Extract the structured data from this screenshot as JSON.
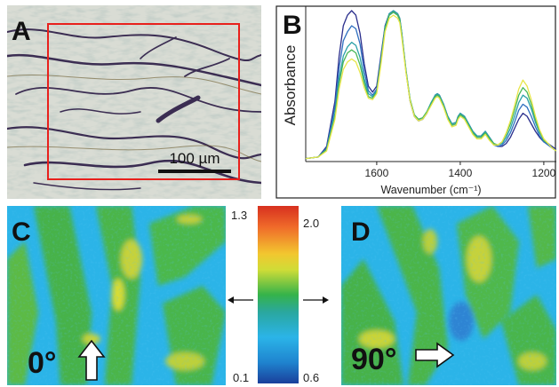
{
  "panels": {
    "a": {
      "label": "A",
      "scalebar": "100 µm"
    },
    "b": {
      "label": "B"
    },
    "c": {
      "label": "C",
      "angle": "0°"
    },
    "d": {
      "label": "D",
      "angle": "90°"
    }
  },
  "colorbar": {
    "left_max": "1.3",
    "left_min": "0.1",
    "right_max": "2.0",
    "right_min": "0.6"
  },
  "chart_data": {
    "type": "line",
    "xlabel": "Wavenumber (cm⁻¹)",
    "ylabel": "Absorbance",
    "xlim": [
      1770,
      1170
    ],
    "x_reversed": true,
    "ylim": [
      0,
      1
    ],
    "xticks": [
      1600,
      1400,
      1200
    ],
    "grid": false,
    "x": [
      1770,
      1740,
      1720,
      1700,
      1690,
      1680,
      1670,
      1660,
      1650,
      1640,
      1630,
      1620,
      1610,
      1600,
      1590,
      1580,
      1570,
      1560,
      1550,
      1545,
      1540,
      1530,
      1520,
      1510,
      1500,
      1490,
      1480,
      1470,
      1460,
      1455,
      1450,
      1440,
      1430,
      1420,
      1410,
      1405,
      1400,
      1390,
      1380,
      1370,
      1360,
      1350,
      1340,
      1330,
      1320,
      1310,
      1300,
      1290,
      1280,
      1270,
      1260,
      1250,
      1240,
      1230,
      1220,
      1210,
      1200,
      1190,
      1180,
      1170
    ],
    "series": [
      {
        "values": [
          0.02,
          0.03,
          0.1,
          0.4,
          0.7,
          0.9,
          0.97,
          1.0,
          0.97,
          0.85,
          0.65,
          0.5,
          0.46,
          0.5,
          0.7,
          0.9,
          0.98,
          1.0,
          0.98,
          0.95,
          0.85,
          0.6,
          0.4,
          0.3,
          0.27,
          0.28,
          0.32,
          0.38,
          0.44,
          0.45,
          0.44,
          0.38,
          0.3,
          0.25,
          0.26,
          0.3,
          0.32,
          0.3,
          0.25,
          0.2,
          0.17,
          0.17,
          0.2,
          0.16,
          0.12,
          0.1,
          0.1,
          0.12,
          0.16,
          0.22,
          0.28,
          0.32,
          0.3,
          0.25,
          0.2,
          0.16,
          0.13,
          0.12,
          0.1,
          0.08
        ]
      },
      {
        "values": [
          0.02,
          0.03,
          0.09,
          0.36,
          0.62,
          0.8,
          0.86,
          0.9,
          0.88,
          0.78,
          0.6,
          0.47,
          0.44,
          0.48,
          0.68,
          0.89,
          0.97,
          0.99,
          0.97,
          0.94,
          0.84,
          0.6,
          0.4,
          0.3,
          0.27,
          0.28,
          0.32,
          0.38,
          0.43,
          0.44,
          0.43,
          0.37,
          0.29,
          0.24,
          0.25,
          0.29,
          0.31,
          0.29,
          0.24,
          0.19,
          0.16,
          0.16,
          0.19,
          0.15,
          0.11,
          0.1,
          0.11,
          0.14,
          0.19,
          0.26,
          0.34,
          0.38,
          0.36,
          0.3,
          0.23,
          0.17,
          0.13,
          0.11,
          0.09,
          0.07
        ]
      },
      {
        "values": [
          0.02,
          0.03,
          0.08,
          0.32,
          0.55,
          0.7,
          0.76,
          0.79,
          0.77,
          0.69,
          0.55,
          0.45,
          0.43,
          0.47,
          0.67,
          0.89,
          0.98,
          1.0,
          0.98,
          0.95,
          0.85,
          0.61,
          0.41,
          0.31,
          0.28,
          0.29,
          0.33,
          0.39,
          0.44,
          0.45,
          0.44,
          0.38,
          0.3,
          0.25,
          0.26,
          0.3,
          0.32,
          0.3,
          0.25,
          0.2,
          0.17,
          0.17,
          0.2,
          0.16,
          0.12,
          0.11,
          0.12,
          0.16,
          0.22,
          0.3,
          0.39,
          0.44,
          0.42,
          0.35,
          0.26,
          0.19,
          0.14,
          0.12,
          0.09,
          0.07
        ]
      },
      {
        "values": [
          0.02,
          0.03,
          0.08,
          0.3,
          0.52,
          0.66,
          0.72,
          0.74,
          0.72,
          0.64,
          0.52,
          0.43,
          0.42,
          0.46,
          0.66,
          0.88,
          0.97,
          0.99,
          0.97,
          0.94,
          0.84,
          0.6,
          0.41,
          0.31,
          0.28,
          0.29,
          0.33,
          0.38,
          0.43,
          0.44,
          0.43,
          0.37,
          0.29,
          0.24,
          0.25,
          0.29,
          0.31,
          0.29,
          0.24,
          0.19,
          0.16,
          0.16,
          0.19,
          0.15,
          0.12,
          0.11,
          0.13,
          0.18,
          0.25,
          0.34,
          0.44,
          0.49,
          0.46,
          0.38,
          0.28,
          0.2,
          0.14,
          0.12,
          0.09,
          0.07
        ]
      },
      {
        "values": [
          0.02,
          0.03,
          0.07,
          0.28,
          0.48,
          0.61,
          0.66,
          0.68,
          0.66,
          0.59,
          0.49,
          0.42,
          0.41,
          0.45,
          0.64,
          0.86,
          0.95,
          0.97,
          0.95,
          0.92,
          0.82,
          0.59,
          0.4,
          0.3,
          0.27,
          0.28,
          0.32,
          0.37,
          0.42,
          0.43,
          0.42,
          0.36,
          0.28,
          0.23,
          0.24,
          0.28,
          0.3,
          0.28,
          0.23,
          0.18,
          0.15,
          0.15,
          0.18,
          0.14,
          0.11,
          0.11,
          0.13,
          0.19,
          0.27,
          0.37,
          0.48,
          0.54,
          0.5,
          0.41,
          0.3,
          0.21,
          0.15,
          0.12,
          0.09,
          0.07
        ]
      }
    ],
    "series_colors": [
      "#2a2e8c",
      "#2f6fc0",
      "#2aa0a8",
      "#48b858",
      "#e8e64a"
    ]
  }
}
